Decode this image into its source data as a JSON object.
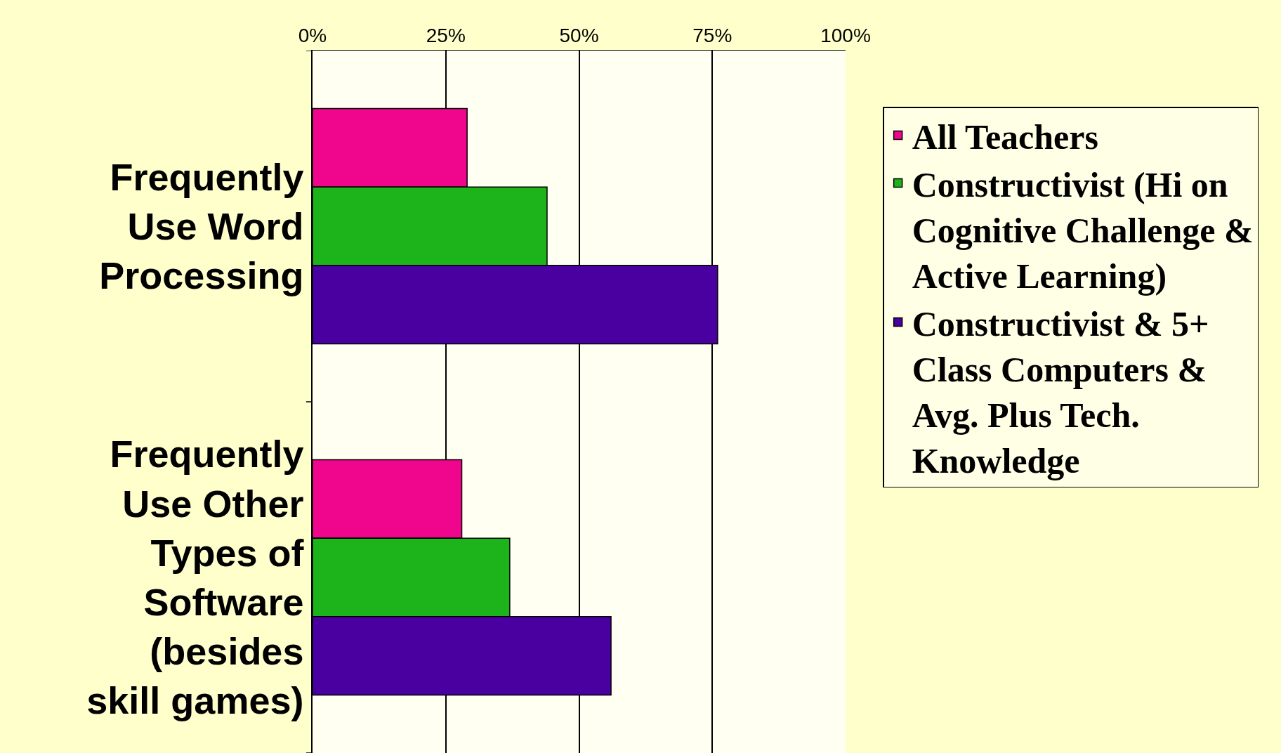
{
  "chart_data": {
    "type": "bar",
    "orientation": "horizontal",
    "categories": [
      "Frequently Use Word Processing",
      "Frequently Use Other Types of Software (besides skill games)"
    ],
    "series": [
      {
        "name": "All Teachers",
        "color": "#f0068c",
        "values": [
          29,
          28
        ]
      },
      {
        "name": "Constructivist (Hi on Cognitive Challenge & Active Learning)",
        "color": "#1db31a",
        "values": [
          44,
          37
        ]
      },
      {
        "name": "Constructivist & 5+ Class Computers & Avg. Plus Tech. Knowledge",
        "color": "#4a00a0",
        "values": [
          76,
          56
        ]
      }
    ],
    "xlim": [
      0,
      100
    ],
    "xticks": [
      {
        "value": 0,
        "label": "0%"
      },
      {
        "value": 25,
        "label": "25%"
      },
      {
        "value": 50,
        "label": "50%"
      },
      {
        "value": 75,
        "label": "75%"
      },
      {
        "value": 100,
        "label": "100%"
      }
    ],
    "grid": "x",
    "legend": "right"
  }
}
